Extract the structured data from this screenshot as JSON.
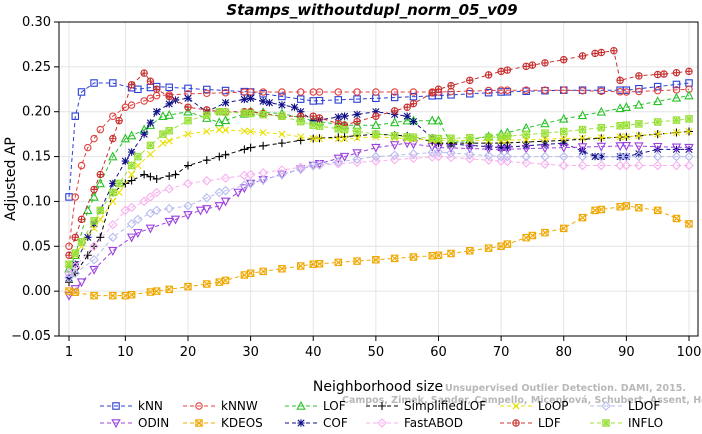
{
  "chart_data": {
    "type": "line",
    "title": "Stamps_withoutdupl_norm_05_v09",
    "xlabel": "Neighborhood size",
    "ylabel": "Adjusted AP",
    "xlim": [
      1,
      100
    ],
    "ylim": [
      -0.05,
      0.3
    ],
    "xticks": [
      1,
      10,
      20,
      30,
      40,
      50,
      60,
      70,
      80,
      90,
      100
    ],
    "yticks": [
      -0.05,
      0.0,
      0.05,
      0.1,
      0.15,
      0.2,
      0.25,
      0.3
    ],
    "ytick_labels": [
      "−0.05",
      "0.00",
      "0.05",
      "0.10",
      "0.15",
      "0.20",
      "0.25",
      "0.30"
    ],
    "legend_position": "bottom",
    "watermark": [
      "Unsupervised Outlier Detection. DAMI, 2015.",
      "Campos, Zimek, Sander, Campello, Micenková, Schubert, Assent, Houle"
    ],
    "series": [
      {
        "name": "kNN",
        "color": "#2a3fd6",
        "marker": "square",
        "points": [
          [
            1,
            0.105
          ],
          [
            2,
            0.195
          ],
          [
            3,
            0.222
          ],
          [
            5,
            0.232
          ],
          [
            8,
            0.232
          ],
          [
            12,
            0.225
          ],
          [
            15,
            0.228
          ],
          [
            20,
            0.226
          ],
          [
            30,
            0.222
          ],
          [
            40,
            0.212
          ],
          [
            50,
            0.215
          ],
          [
            60,
            0.218
          ],
          [
            70,
            0.222
          ],
          [
            80,
            0.224
          ],
          [
            90,
            0.224
          ],
          [
            100,
            0.232
          ]
        ]
      },
      {
        "name": "kNNW",
        "color": "#e04040",
        "marker": "circle",
        "points": [
          [
            1,
            0.05
          ],
          [
            2,
            0.105
          ],
          [
            3,
            0.14
          ],
          [
            4,
            0.16
          ],
          [
            6,
            0.18
          ],
          [
            8,
            0.195
          ],
          [
            10,
            0.205
          ],
          [
            13,
            0.212
          ],
          [
            15,
            0.218
          ],
          [
            20,
            0.22
          ],
          [
            30,
            0.222
          ],
          [
            40,
            0.222
          ],
          [
            50,
            0.222
          ],
          [
            60,
            0.222
          ],
          [
            70,
            0.224
          ],
          [
            80,
            0.224
          ],
          [
            90,
            0.222
          ],
          [
            100,
            0.225
          ]
        ]
      },
      {
        "name": "LOF",
        "color": "#28c228",
        "marker": "triangle-up",
        "points": [
          [
            1,
            0.025
          ],
          [
            2,
            0.04
          ],
          [
            4,
            0.09
          ],
          [
            6,
            0.12
          ],
          [
            8,
            0.15
          ],
          [
            10,
            0.17
          ],
          [
            13,
            0.18
          ],
          [
            16,
            0.195
          ],
          [
            20,
            0.2
          ],
          [
            25,
            0.188
          ],
          [
            30,
            0.2
          ],
          [
            35,
            0.198
          ],
          [
            40,
            0.19
          ],
          [
            45,
            0.185
          ],
          [
            50,
            0.185
          ],
          [
            55,
            0.19
          ],
          [
            60,
            0.19
          ],
          [
            62,
            0.165
          ],
          [
            70,
            0.175
          ],
          [
            80,
            0.192
          ],
          [
            90,
            0.205
          ],
          [
            100,
            0.218
          ]
        ]
      },
      {
        "name": "COF",
        "color": "#101088",
        "marker": "asterisk",
        "points": [
          [
            1,
            0.015
          ],
          [
            2,
            0.03
          ],
          [
            4,
            0.06
          ],
          [
            6,
            0.09
          ],
          [
            8,
            0.12
          ],
          [
            10,
            0.145
          ],
          [
            13,
            0.175
          ],
          [
            15,
            0.2
          ],
          [
            18,
            0.213
          ],
          [
            20,
            0.215
          ],
          [
            23,
            0.2
          ],
          [
            26,
            0.21
          ],
          [
            30,
            0.215
          ],
          [
            33,
            0.21
          ],
          [
            37,
            0.205
          ],
          [
            40,
            0.19
          ],
          [
            45,
            0.195
          ],
          [
            50,
            0.2
          ],
          [
            55,
            0.195
          ],
          [
            60,
            0.165
          ],
          [
            70,
            0.16
          ],
          [
            80,
            0.165
          ],
          [
            85,
            0.15
          ],
          [
            90,
            0.15
          ],
          [
            95,
            0.158
          ],
          [
            100,
            0.158
          ]
        ]
      },
      {
        "name": "ODIN",
        "color": "#9c40e0",
        "marker": "triangle-down",
        "points": [
          [
            1,
            -0.005
          ],
          [
            3,
            0.01
          ],
          [
            8,
            0.045
          ],
          [
            12,
            0.065
          ],
          [
            18,
            0.08
          ],
          [
            22,
            0.09
          ],
          [
            25,
            0.095
          ],
          [
            28,
            0.11
          ],
          [
            30,
            0.12
          ],
          [
            35,
            0.13
          ],
          [
            40,
            0.14
          ],
          [
            45,
            0.15
          ],
          [
            50,
            0.16
          ],
          [
            55,
            0.165
          ],
          [
            60,
            0.16
          ],
          [
            70,
            0.158
          ],
          [
            80,
            0.16
          ],
          [
            90,
            0.162
          ],
          [
            100,
            0.16
          ]
        ]
      },
      {
        "name": "KDEOS",
        "color": "#f0a800",
        "marker": "square-cross",
        "points": [
          [
            1,
            0.0
          ],
          [
            5,
            -0.005
          ],
          [
            10,
            -0.005
          ],
          [
            15,
            0.0
          ],
          [
            20,
            0.005
          ],
          [
            25,
            0.01
          ],
          [
            30,
            0.02
          ],
          [
            35,
            0.025
          ],
          [
            40,
            0.03
          ],
          [
            50,
            0.035
          ],
          [
            60,
            0.04
          ],
          [
            70,
            0.05
          ],
          [
            75,
            0.062
          ],
          [
            80,
            0.07
          ],
          [
            85,
            0.09
          ],
          [
            90,
            0.095
          ],
          [
            95,
            0.09
          ],
          [
            100,
            0.075
          ]
        ]
      },
      {
        "name": "SimplifiedLOF",
        "color": "#000000",
        "marker": "plus",
        "points": [
          [
            1,
            0.01
          ],
          [
            2,
            0.02
          ],
          [
            4,
            0.04
          ],
          [
            6,
            0.06
          ],
          [
            8,
            0.11
          ],
          [
            10,
            0.12
          ],
          [
            13,
            0.13
          ],
          [
            15,
            0.125
          ],
          [
            18,
            0.13
          ],
          [
            20,
            0.14
          ],
          [
            25,
            0.15
          ],
          [
            30,
            0.16
          ],
          [
            35,
            0.165
          ],
          [
            40,
            0.17
          ],
          [
            45,
            0.172
          ],
          [
            50,
            0.175
          ],
          [
            55,
            0.173
          ],
          [
            60,
            0.165
          ],
          [
            70,
            0.165
          ],
          [
            80,
            0.168
          ],
          [
            90,
            0.172
          ],
          [
            100,
            0.178
          ]
        ]
      },
      {
        "name": "FastABOD",
        "color": "#f8b0f0",
        "marker": "diamond",
        "points": [
          [
            1,
            0.02
          ],
          [
            5,
            0.05
          ],
          [
            10,
            0.09
          ],
          [
            13,
            0.1
          ],
          [
            15,
            0.11
          ],
          [
            20,
            0.12
          ],
          [
            30,
            0.13
          ],
          [
            40,
            0.14
          ],
          [
            50,
            0.145
          ],
          [
            60,
            0.15
          ],
          [
            70,
            0.145
          ],
          [
            80,
            0.14
          ],
          [
            90,
            0.14
          ],
          [
            100,
            0.14
          ]
        ]
      },
      {
        "name": "LoOP",
        "color": "#e8e000",
        "marker": "cross",
        "points": [
          [
            1,
            0.03
          ],
          [
            3,
            0.05
          ],
          [
            6,
            0.08
          ],
          [
            9,
            0.11
          ],
          [
            12,
            0.14
          ],
          [
            16,
            0.165
          ],
          [
            20,
            0.175
          ],
          [
            25,
            0.18
          ],
          [
            30,
            0.178
          ],
          [
            35,
            0.175
          ],
          [
            40,
            0.17
          ],
          [
            45,
            0.17
          ],
          [
            50,
            0.172
          ],
          [
            55,
            0.17
          ],
          [
            60,
            0.168
          ],
          [
            70,
            0.168
          ],
          [
            80,
            0.17
          ],
          [
            90,
            0.172
          ],
          [
            100,
            0.178
          ]
        ]
      },
      {
        "name": "LDF",
        "color": "#c83030",
        "marker": "circle-plus",
        "points": [
          [
            1,
            0.04
          ],
          [
            3,
            0.08
          ],
          [
            6,
            0.13
          ],
          [
            9,
            0.19
          ],
          [
            11,
            0.23
          ],
          [
            13,
            0.243
          ],
          [
            15,
            0.225
          ],
          [
            20,
            0.205
          ],
          [
            25,
            0.2
          ],
          [
            30,
            0.2
          ],
          [
            35,
            0.195
          ],
          [
            40,
            0.195
          ],
          [
            45,
            0.185
          ],
          [
            50,
            0.195
          ],
          [
            55,
            0.205
          ],
          [
            60,
            0.225
          ],
          [
            65,
            0.235
          ],
          [
            70,
            0.245
          ],
          [
            75,
            0.252
          ],
          [
            80,
            0.258
          ],
          [
            85,
            0.265
          ],
          [
            88,
            0.268
          ],
          [
            89,
            0.235
          ],
          [
            92,
            0.24
          ],
          [
            96,
            0.242
          ],
          [
            100,
            0.245
          ]
        ]
      },
      {
        "name": "LDOF",
        "color": "#b8bcf0",
        "marker": "diamond",
        "points": [
          [
            1,
            0.015
          ],
          [
            5,
            0.035
          ],
          [
            8,
            0.06
          ],
          [
            12,
            0.08
          ],
          [
            15,
            0.09
          ],
          [
            20,
            0.095
          ],
          [
            25,
            0.11
          ],
          [
            30,
            0.12
          ],
          [
            35,
            0.13
          ],
          [
            40,
            0.14
          ],
          [
            50,
            0.15
          ],
          [
            60,
            0.155
          ],
          [
            70,
            0.15
          ],
          [
            80,
            0.15
          ],
          [
            90,
            0.15
          ],
          [
            100,
            0.15
          ]
        ]
      },
      {
        "name": "INFLO",
        "color": "#98e038",
        "marker": "asterisk-square",
        "points": [
          [
            1,
            0.03
          ],
          [
            3,
            0.055
          ],
          [
            6,
            0.09
          ],
          [
            9,
            0.12
          ],
          [
            12,
            0.15
          ],
          [
            16,
            0.175
          ],
          [
            20,
            0.19
          ],
          [
            25,
            0.2
          ],
          [
            30,
            0.198
          ],
          [
            35,
            0.195
          ],
          [
            40,
            0.185
          ],
          [
            45,
            0.18
          ],
          [
            50,
            0.175
          ],
          [
            55,
            0.172
          ],
          [
            60,
            0.17
          ],
          [
            70,
            0.172
          ],
          [
            80,
            0.178
          ],
          [
            90,
            0.185
          ],
          [
            100,
            0.192
          ]
        ]
      }
    ]
  }
}
